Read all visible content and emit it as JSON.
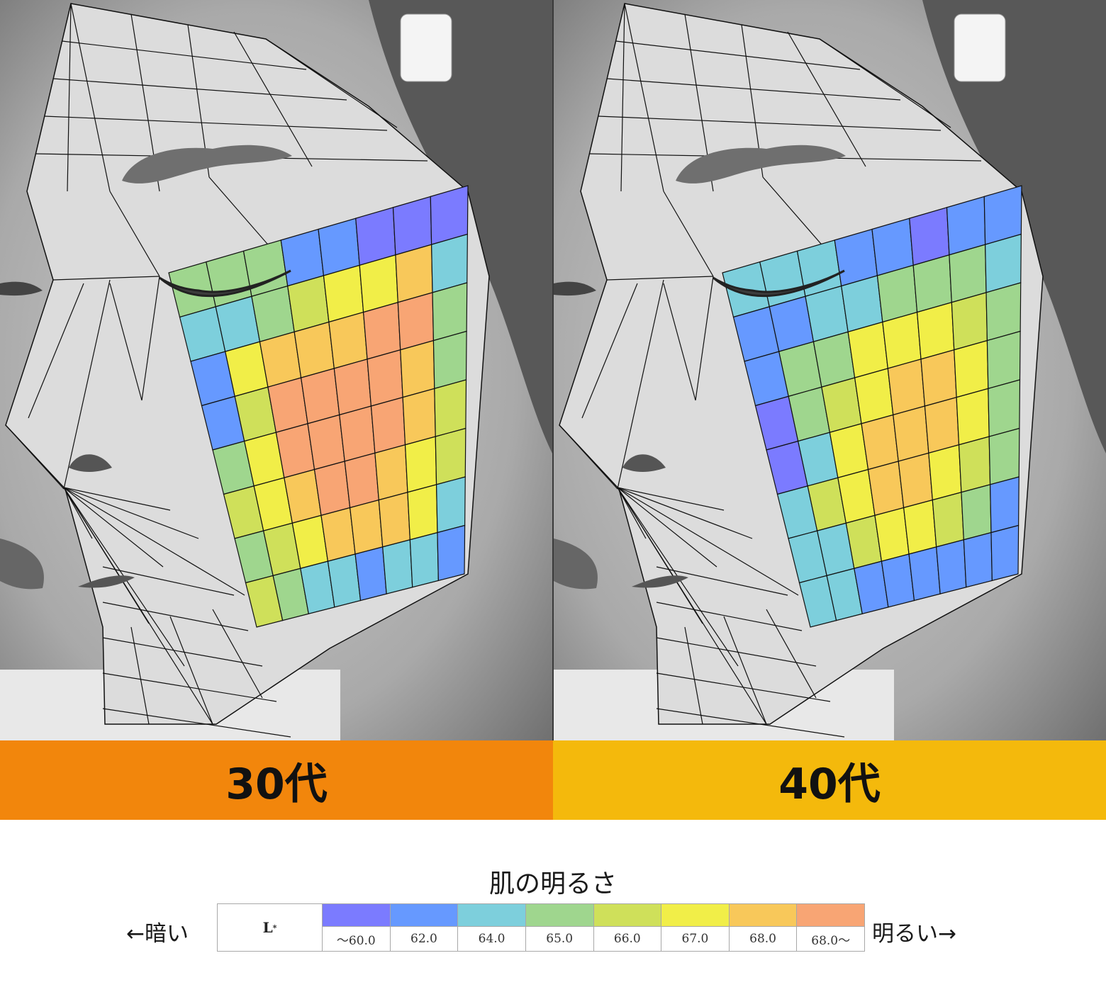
{
  "panels": [
    {
      "id": "left",
      "label": "30代",
      "banner_color": "#f2860c"
    },
    {
      "id": "right",
      "label": "40代",
      "banner_color": "#f4b90c"
    }
  ],
  "legend": {
    "title": "肌の明るさ",
    "dark_label": "←暗い",
    "bright_label": "明るい→",
    "metric_label": "L",
    "metric_sup": "*",
    "colors": [
      "#7b7bff",
      "#6699ff",
      "#7dcfdc",
      "#9fd68e",
      "#cfe05a",
      "#f1ee48",
      "#f8c85a",
      "#f8a574"
    ],
    "values": [
      "～60.0",
      "62.0",
      "64.0",
      "65.0",
      "66.0",
      "67.0",
      "68.0",
      "68.0～"
    ]
  },
  "face_map": {
    "30s": [
      [
        3,
        3,
        3,
        1,
        1,
        0,
        0,
        0
      ],
      [
        2,
        2,
        3,
        4,
        5,
        5,
        6,
        2
      ],
      [
        1,
        5,
        6,
        6,
        6,
        7,
        7,
        3
      ],
      [
        1,
        4,
        7,
        7,
        7,
        7,
        6,
        3
      ],
      [
        3,
        5,
        7,
        7,
        7,
        7,
        6,
        4
      ],
      [
        4,
        5,
        6,
        7,
        7,
        6,
        5,
        4
      ],
      [
        3,
        4,
        5,
        6,
        6,
        6,
        5,
        2
      ],
      [
        4,
        3,
        2,
        2,
        1,
        2,
        2,
        1
      ]
    ],
    "40s": [
      [
        2,
        2,
        2,
        1,
        1,
        0,
        1,
        1
      ],
      [
        1,
        1,
        2,
        2,
        3,
        3,
        3,
        2
      ],
      [
        1,
        3,
        3,
        5,
        5,
        5,
        4,
        3
      ],
      [
        0,
        3,
        4,
        5,
        6,
        6,
        5,
        3
      ],
      [
        0,
        2,
        5,
        6,
        6,
        6,
        5,
        3
      ],
      [
        2,
        4,
        5,
        6,
        6,
        5,
        4,
        3
      ],
      [
        2,
        2,
        4,
        5,
        5,
        4,
        3,
        1
      ],
      [
        2,
        2,
        1,
        1,
        1,
        1,
        1,
        1
      ]
    ]
  }
}
